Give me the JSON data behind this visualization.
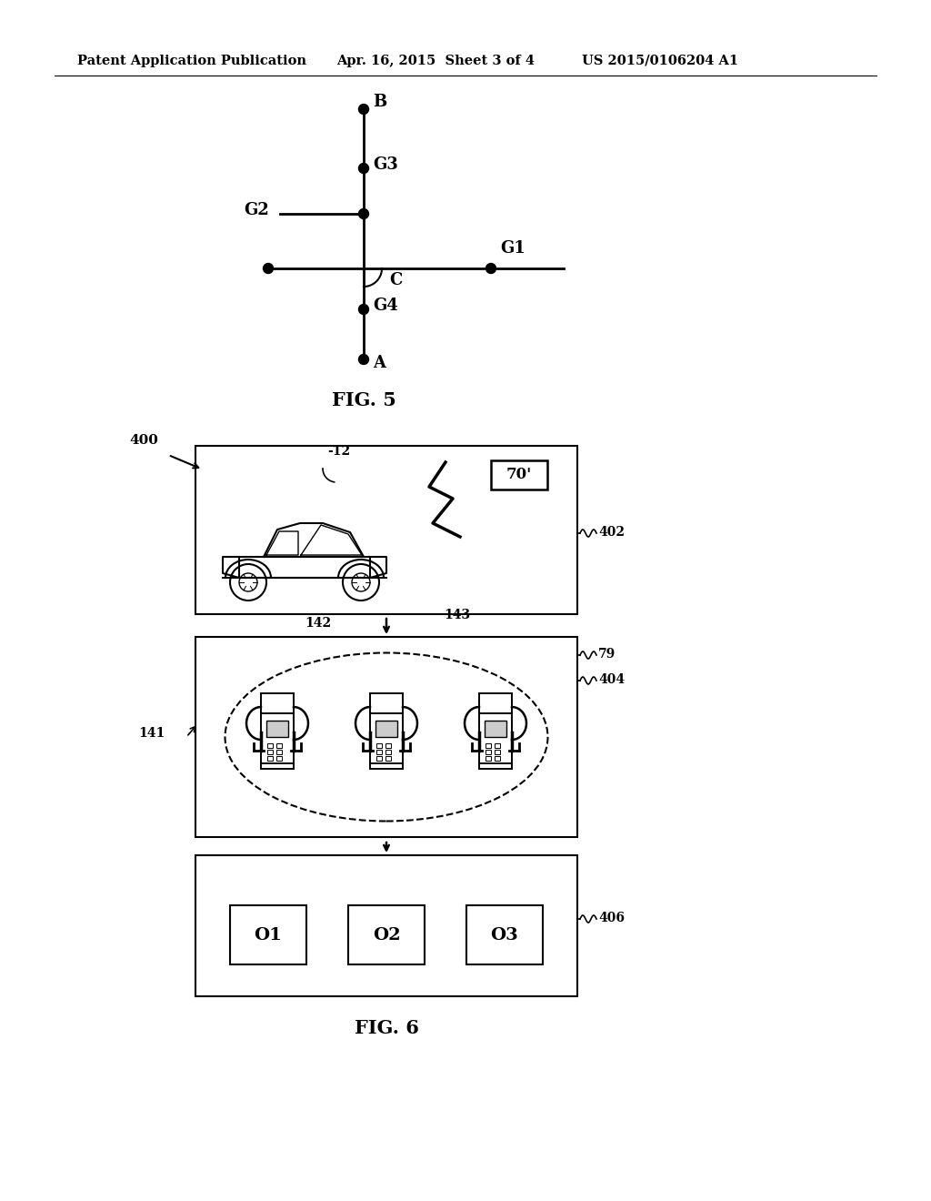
{
  "bg_color": "#ffffff",
  "header_left": "Patent Application Publication",
  "header_mid": "Apr. 16, 2015  Sheet 3 of 4",
  "header_right": "US 2015/0106204 A1",
  "fig5_label": "FIG. 5",
  "fig6_label": "FIG. 6",
  "label_400": "400",
  "label_402": "402",
  "label_404": "404",
  "label_406": "406",
  "label_12": "-12",
  "label_70": "70'",
  "label_142": "142",
  "label_143": "143",
  "label_79": "79",
  "label_141": "141",
  "label_o1": "O1",
  "label_o2": "O2",
  "label_o3": "O3"
}
